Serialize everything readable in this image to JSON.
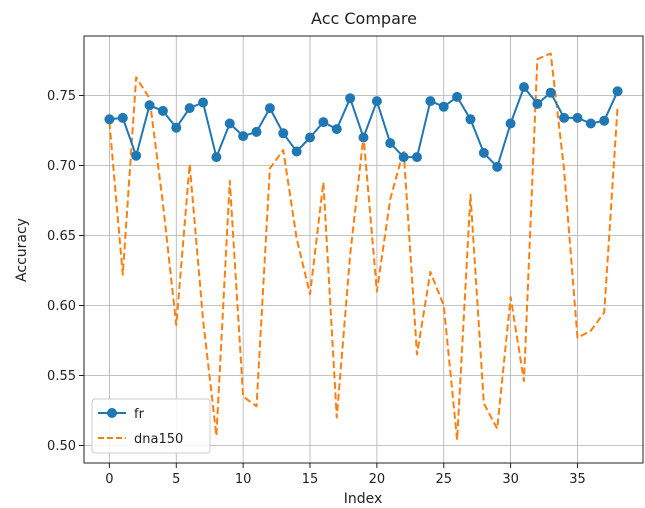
{
  "chart_data": {
    "type": "line",
    "title": "Acc Compare",
    "xlabel": "Index",
    "ylabel": "Accuracy",
    "xlim": [
      -1.9,
      39.9
    ],
    "ylim": [
      0.4875,
      0.7925
    ],
    "xticks": [
      0,
      5,
      10,
      15,
      20,
      25,
      30,
      35
    ],
    "yticks": [
      0.5,
      0.55,
      0.6,
      0.65,
      0.7,
      0.75
    ],
    "ytick_labels": [
      "0.50",
      "0.55",
      "0.60",
      "0.65",
      "0.70",
      "0.75"
    ],
    "grid": true,
    "legend_position": "lower-left",
    "x": [
      0,
      1,
      2,
      3,
      4,
      5,
      6,
      7,
      8,
      9,
      10,
      11,
      12,
      13,
      14,
      15,
      16,
      17,
      18,
      19,
      20,
      21,
      22,
      23,
      24,
      25,
      26,
      27,
      28,
      29,
      30,
      31,
      32,
      33,
      34,
      35,
      36,
      37,
      38
    ],
    "series": [
      {
        "name": "fr",
        "color": "#1f77b4",
        "style": "solid-with-markers",
        "values": [
          0.733,
          0.734,
          0.707,
          0.743,
          0.739,
          0.727,
          0.741,
          0.745,
          0.706,
          0.73,
          0.721,
          0.724,
          0.741,
          0.723,
          0.71,
          0.72,
          0.731,
          0.726,
          0.748,
          0.72,
          0.746,
          0.716,
          0.706,
          0.706,
          0.746,
          0.742,
          0.749,
          0.733,
          0.709,
          0.699,
          0.73,
          0.756,
          0.744,
          0.752,
          0.734,
          0.734,
          0.73,
          0.732,
          0.753
        ]
      },
      {
        "name": "dna150",
        "color": "#ff7f0e",
        "style": "dashed",
        "values": [
          0.731,
          0.622,
          0.763,
          0.748,
          0.673,
          0.586,
          0.701,
          0.59,
          0.507,
          0.689,
          0.535,
          0.528,
          0.698,
          0.711,
          0.648,
          0.608,
          0.688,
          0.52,
          0.636,
          0.721,
          0.61,
          0.676,
          0.711,
          0.565,
          0.624,
          0.6,
          0.504,
          0.679,
          0.53,
          0.512,
          0.606,
          0.546,
          0.776,
          0.78,
          0.697,
          0.577,
          0.582,
          0.595,
          0.742
        ]
      }
    ]
  }
}
